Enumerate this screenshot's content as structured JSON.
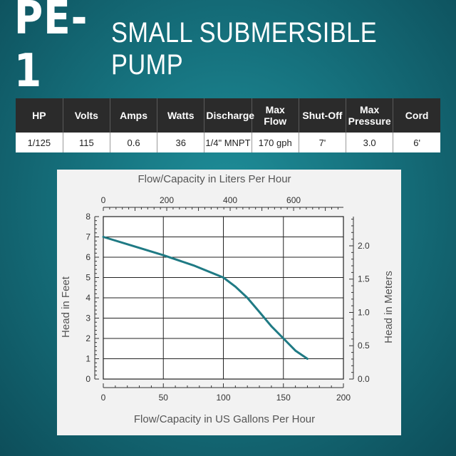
{
  "header": {
    "model": "PE-1",
    "subtitle": "SMALL SUBMERSIBLE PUMP"
  },
  "specs": {
    "headers": [
      [
        "HP"
      ],
      [
        "Volts"
      ],
      [
        "Amps"
      ],
      [
        "Watts"
      ],
      [
        "Discharge"
      ],
      [
        "Max",
        "Flow"
      ],
      [
        "Shut-Off"
      ],
      [
        "Max",
        "Pressure"
      ],
      [
        "Cord"
      ]
    ],
    "values": [
      "1/125",
      "115",
      "0.6",
      "36",
      "1/4\" MNPT",
      "170 gph",
      "7'",
      "3.0",
      "6'"
    ]
  },
  "colors": {
    "curve": "#1f7a84",
    "header_bg": "#2b2b2b",
    "background": "#16727e"
  },
  "chart_data": {
    "type": "line",
    "title": "Flow/Capacity in Liters Per Hour",
    "xlabel": "Flow/Capacity in US Gallons Per Hour",
    "ylabel": "Head in Feet",
    "y2label": "Head in Meters",
    "xlim": [
      0,
      200
    ],
    "ylim": [
      0,
      8
    ],
    "x_ticks": [
      "0",
      "50",
      "100",
      "150",
      "200"
    ],
    "y_ticks": [
      "0",
      "1",
      "2",
      "3",
      "4",
      "5",
      "6",
      "7",
      "8"
    ],
    "top_axis": {
      "label": "Flow/Capacity in Liters Per Hour",
      "ticks": [
        0,
        200,
        400,
        600
      ],
      "gph_per_unit": 0.264172
    },
    "right_axis": {
      "label": "Head in Meters",
      "ticks": [
        "0.0",
        "0.5",
        "1.0",
        "1.5",
        "2.0"
      ],
      "values": [
        0,
        0.5,
        1.0,
        1.5,
        2.0
      ],
      "feet_per_unit": 3.28084
    },
    "grid": true,
    "series": [
      {
        "x": [
          0,
          25,
          50,
          75,
          100,
          110,
          120,
          130,
          140,
          150,
          160,
          170
        ],
        "y": [
          7.0,
          6.55,
          6.1,
          5.6,
          5.0,
          4.55,
          4.0,
          3.3,
          2.6,
          2.0,
          1.4,
          1.0
        ]
      }
    ]
  }
}
